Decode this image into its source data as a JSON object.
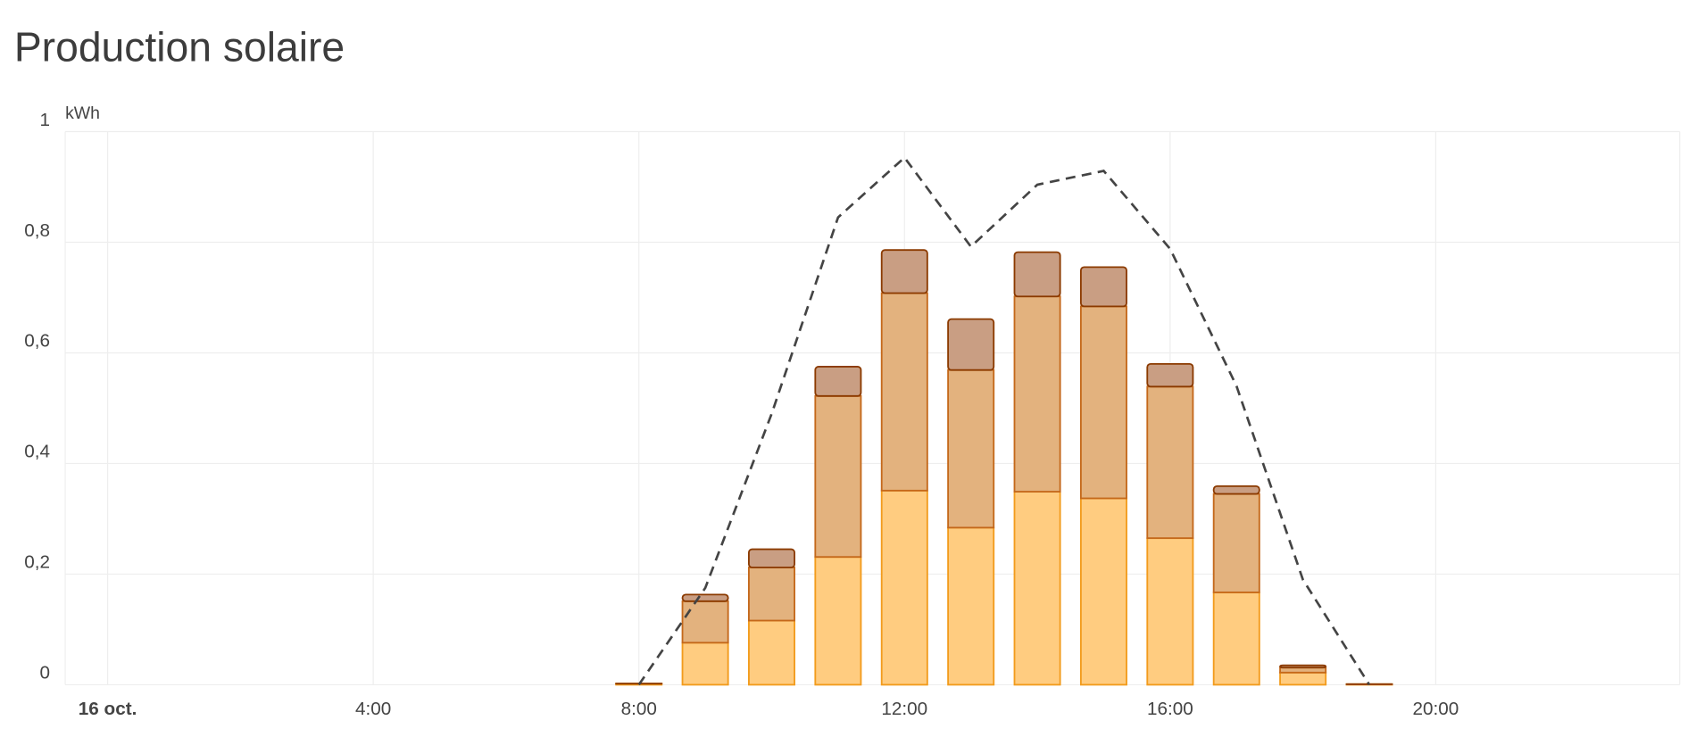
{
  "chart_data": {
    "type": "bar",
    "stacked": true,
    "title": "Production solaire",
    "y_unit": "kWh",
    "categories": [
      "16 oct.",
      null,
      null,
      null,
      "4:00",
      null,
      null,
      null,
      "8:00",
      null,
      null,
      null,
      "12:00",
      null,
      null,
      null,
      "16:00",
      null,
      null,
      null,
      "20:00",
      null,
      null,
      null
    ],
    "series": [
      {
        "color": "#ffcc80",
        "stroke": "#f29b1c",
        "values": [
          null,
          null,
          null,
          null,
          null,
          null,
          null,
          null,
          0.002,
          0.076,
          0.116,
          0.231,
          0.351,
          0.284,
          0.349,
          0.337,
          0.265,
          0.167,
          0.022,
          0.001,
          null,
          null,
          null,
          null
        ]
      },
      {
        "color": "#e3b27e",
        "stroke": "#c4681a",
        "values": [
          null,
          null,
          null,
          null,
          null,
          null,
          null,
          null,
          0,
          0.075,
          0.096,
          0.291,
          0.357,
          0.285,
          0.353,
          0.347,
          0.274,
          0.178,
          0.009,
          0,
          null,
          null,
          null,
          null
        ]
      },
      {
        "color": "#c99e83",
        "stroke": "#8b3a00",
        "values": [
          null,
          null,
          null,
          null,
          null,
          null,
          null,
          null,
          0,
          0.012,
          0.033,
          0.053,
          0.078,
          0.092,
          0.08,
          0.071,
          0.041,
          0.014,
          0.004,
          0,
          null,
          null,
          null,
          null
        ]
      }
    ],
    "line": {
      "color": "#444444",
      "style": "dashed",
      "values": [
        null,
        null,
        null,
        null,
        null,
        null,
        null,
        null,
        0,
        0.175,
        0.49,
        0.845,
        0.953,
        0.792,
        0.904,
        0.929,
        0.788,
        0.54,
        0.19,
        0,
        null,
        null,
        null,
        null
      ]
    },
    "ylim": [
      0,
      1
    ],
    "yticks": [
      0,
      {
        "value": 0.2,
        "label": "0,2"
      },
      {
        "value": 0.4,
        "label": "0,4"
      },
      {
        "value": 0.6,
        "label": "0,6"
      },
      {
        "value": 0.8,
        "label": "0,8"
      },
      1
    ],
    "grid": true
  }
}
